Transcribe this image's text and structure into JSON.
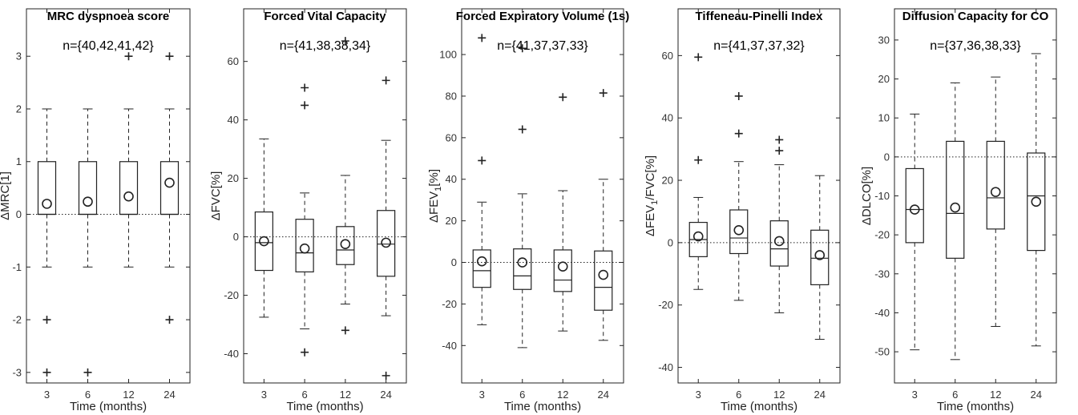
{
  "chart_data": [
    {
      "type": "box",
      "title": "MRC dyspnoea score",
      "annotation": "n={40,42,41,42}",
      "ylabel": "ΔMRC[1]",
      "xlabel": "Time (months)",
      "categories": [
        "3",
        "6",
        "12",
        "24"
      ],
      "ylim": [
        -3.2,
        3.9
      ],
      "yticks": [
        -3,
        -2,
        -1,
        0,
        1,
        2,
        3
      ],
      "ytick_labels": [
        "-3",
        "-2",
        "-1",
        "0",
        "1",
        "2",
        "3"
      ],
      "reference_line": 0,
      "boxes": [
        {
          "whisker_low": -1,
          "q1": 0,
          "median": 0,
          "q3": 1,
          "whisker_high": 2,
          "mean": 0.2,
          "outliers": [
            -2,
            -3
          ]
        },
        {
          "whisker_low": -1,
          "q1": 0,
          "median": 0,
          "q3": 1,
          "whisker_high": 2,
          "mean": 0.24,
          "outliers": [
            -3
          ]
        },
        {
          "whisker_low": -1,
          "q1": 0,
          "median": 0,
          "q3": 1,
          "whisker_high": 2,
          "mean": 0.34,
          "outliers": [
            3
          ]
        },
        {
          "whisker_low": -1,
          "q1": 0,
          "median": 0,
          "q3": 1,
          "whisker_high": 2,
          "mean": 0.6,
          "outliers": [
            3,
            -2
          ]
        }
      ]
    },
    {
      "type": "box",
      "title": "Forced Vital Capacity",
      "annotation": "n={41,38,38,34}",
      "ylabel": "ΔFVC[%]",
      "xlabel": "Time (months)",
      "categories": [
        "3",
        "6",
        "12",
        "24"
      ],
      "ylim": [
        -50,
        78
      ],
      "yticks": [
        -40,
        -20,
        0,
        20,
        40,
        60
      ],
      "ytick_labels": [
        "-40",
        "-20",
        "0",
        "20",
        "40",
        "60"
      ],
      "reference_line": 0,
      "boxes": [
        {
          "whisker_low": -27.5,
          "q1": -11.5,
          "median": -2,
          "q3": 8.5,
          "whisker_high": 33.5,
          "mean": -1.5,
          "outliers": []
        },
        {
          "whisker_low": -31.5,
          "q1": -12,
          "median": -5.5,
          "q3": 6,
          "whisker_high": 15,
          "mean": -4,
          "outliers": [
            51,
            45,
            -39.5
          ]
        },
        {
          "whisker_low": -23,
          "q1": -9.5,
          "median": -4.5,
          "q3": 3.5,
          "whisker_high": 21,
          "mean": -2.5,
          "outliers": [
            67,
            -32
          ]
        },
        {
          "whisker_low": -27,
          "q1": -13.5,
          "median": -2.5,
          "q3": 9,
          "whisker_high": 33,
          "mean": -2,
          "outliers": [
            53.5,
            -47.5
          ]
        }
      ]
    },
    {
      "type": "box",
      "title": "Forced Expiratory Volume (1s)",
      "annotation": "n={41,37,37,33}",
      "ylabel": "ΔFEV1[%]",
      "ylabel_main": "ΔFEV",
      "ylabel_sub": "1",
      "ylabel_tail": "[%]",
      "xlabel": "Time (months)",
      "categories": [
        "3",
        "6",
        "12",
        "24"
      ],
      "ylim": [
        -58,
        122
      ],
      "yticks": [
        -40,
        -20,
        0,
        20,
        40,
        60,
        80,
        100
      ],
      "ytick_labels": [
        "-40",
        "-20",
        "0",
        "20",
        "40",
        "60",
        "80",
        "100"
      ],
      "reference_line": 0,
      "boxes": [
        {
          "whisker_low": -30,
          "q1": -12,
          "median": -4,
          "q3": 6,
          "whisker_high": 29,
          "mean": 0.5,
          "outliers": [
            108,
            49
          ]
        },
        {
          "whisker_low": -41,
          "q1": -13,
          "median": -6.5,
          "q3": 6.5,
          "whisker_high": 33,
          "mean": 0,
          "outliers": [
            103,
            64
          ]
        },
        {
          "whisker_low": -33,
          "q1": -14,
          "median": -8.5,
          "q3": 6,
          "whisker_high": 34.5,
          "mean": -2,
          "outliers": [
            79.5
          ]
        },
        {
          "whisker_low": -37.5,
          "q1": -23,
          "median": -12,
          "q3": 5.5,
          "whisker_high": 40,
          "mean": -6,
          "outliers": [
            81.5
          ]
        }
      ]
    },
    {
      "type": "box",
      "title": "Tiffeneau-Pinelli Index",
      "annotation": "n={41,37,37,32}",
      "ylabel": "ΔFEV1/FVC[%]",
      "ylabel_main": "ΔFEV",
      "ylabel_sub": "1",
      "ylabel_tail": "/FVC[%]",
      "xlabel": "Time (months)",
      "categories": [
        "3",
        "6",
        "12",
        "24"
      ],
      "ylim": [
        -45,
        75
      ],
      "yticks": [
        -40,
        -20,
        0,
        20,
        40,
        60
      ],
      "ytick_labels": [
        "-40",
        "-20",
        "0",
        "20",
        "40",
        "60"
      ],
      "reference_line": 0,
      "boxes": [
        {
          "whisker_low": -15,
          "q1": -4.5,
          "median": 1,
          "q3": 6.5,
          "whisker_high": 14.5,
          "mean": 2,
          "outliers": [
            59.5,
            26.5
          ]
        },
        {
          "whisker_low": -18.5,
          "q1": -3.5,
          "median": 1.5,
          "q3": 10.5,
          "whisker_high": 26,
          "mean": 4,
          "outliers": [
            47,
            35
          ]
        },
        {
          "whisker_low": -22.5,
          "q1": -7.5,
          "median": -2,
          "q3": 7,
          "whisker_high": 25,
          "mean": 0.5,
          "outliers": [
            33,
            29.5
          ]
        },
        {
          "whisker_low": -31,
          "q1": -13.5,
          "median": -5,
          "q3": 4,
          "whisker_high": 21.5,
          "mean": -4,
          "outliers": []
        }
      ]
    },
    {
      "type": "box",
      "title": "Diffusion Capacity for CO",
      "annotation": "n={37,36,38,33}",
      "ylabel": "ΔDLCO[%]",
      "xlabel": "Time (months)",
      "categories": [
        "3",
        "6",
        "12",
        "24"
      ],
      "ylim": [
        -58,
        38
      ],
      "yticks": [
        -50,
        -40,
        -30,
        -20,
        -10,
        0,
        10,
        20,
        30
      ],
      "ytick_labels": [
        "-50",
        "-40",
        "-30",
        "-20",
        "-10",
        "0",
        "10",
        "20",
        "30"
      ],
      "reference_line": 0,
      "boxes": [
        {
          "whisker_low": -49.5,
          "q1": -22,
          "median": -13.5,
          "q3": -3,
          "whisker_high": 11,
          "mean": -13.5,
          "outliers": []
        },
        {
          "whisker_low": -52,
          "q1": -26,
          "median": -14.5,
          "q3": 4,
          "whisker_high": 19,
          "mean": -13,
          "outliers": []
        },
        {
          "whisker_low": -43.5,
          "q1": -18.5,
          "median": -10.5,
          "q3": 4,
          "whisker_high": 20.5,
          "mean": -9,
          "outliers": []
        },
        {
          "whisker_low": -48.5,
          "q1": -24,
          "median": -10,
          "q3": 1,
          "whisker_high": 26.5,
          "mean": -11.5,
          "outliers": []
        }
      ]
    }
  ]
}
